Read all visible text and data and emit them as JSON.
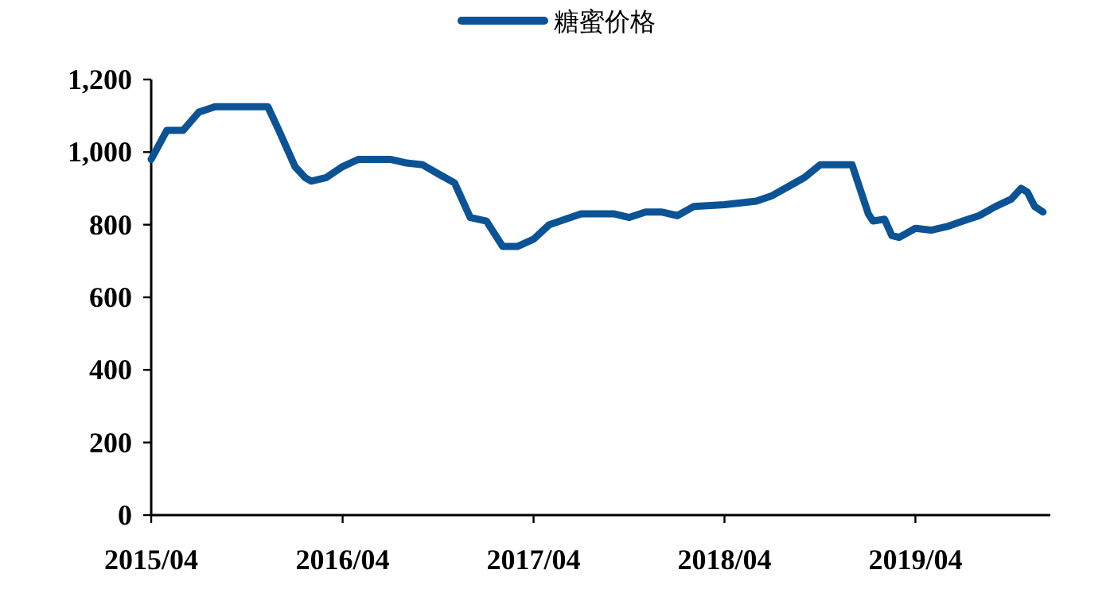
{
  "chart_data": {
    "type": "line",
    "x": [
      "2015-04",
      "2015-05",
      "2015-06",
      "2015-07",
      "2015-08",
      "2015-11-10",
      "2015-12",
      "2016-01",
      "2016-01-20",
      "2016-02",
      "2016-03",
      "2016-04",
      "2016-05",
      "2016-07",
      "2016-08",
      "2016-09",
      "2016-10",
      "2016-11",
      "2016-12",
      "2017-01",
      "2017-02",
      "2017-03",
      "2017-04",
      "2017-05",
      "2017-06",
      "2017-07",
      "2017-09",
      "2017-10",
      "2017-11",
      "2017-12",
      "2018-01",
      "2018-02",
      "2018-04",
      "2018-06",
      "2018-07",
      "2018-08",
      "2018-09",
      "2018-10",
      "2018-11",
      "2018-12",
      "2019-01",
      "2019-01-10",
      "2019-02",
      "2019-02-15",
      "2019-03",
      "2019-04",
      "2019-05",
      "2019-06",
      "2019-07",
      "2019-08",
      "2019-09",
      "2019-10",
      "2019-10-20",
      "2019-11",
      "2019-11-15",
      "2019-12"
    ],
    "series": [
      {
        "name": "糖蜜价格",
        "color": "#0b5394",
        "values": [
          980,
          1060,
          1060,
          1110,
          1125,
          1125,
          1060,
          960,
          930,
          920,
          930,
          960,
          980,
          980,
          970,
          965,
          940,
          915,
          820,
          810,
          740,
          740,
          760,
          800,
          815,
          830,
          830,
          820,
          835,
          835,
          825,
          850,
          855,
          865,
          880,
          905,
          930,
          965,
          965,
          965,
          830,
          810,
          815,
          770,
          765,
          790,
          785,
          795,
          810,
          825,
          850,
          870,
          900,
          890,
          850,
          835
        ]
      }
    ],
    "xlim": [
      "2015-04",
      "2019-12-15"
    ],
    "xticks": [
      {
        "value": "2015-04",
        "label": "2015/04"
      },
      {
        "value": "2016-04",
        "label": "2016/04"
      },
      {
        "value": "2017-04",
        "label": "2017/04"
      },
      {
        "value": "2018-04",
        "label": "2018/04"
      },
      {
        "value": "2019-04",
        "label": "2019/04"
      }
    ],
    "ylim": [
      0,
      1200
    ],
    "yticks": [
      0,
      {
        "value": 200,
        "label": "200"
      },
      {
        "value": 400,
        "label": "400"
      },
      {
        "value": 600,
        "label": "600"
      },
      {
        "value": 800,
        "label": "800"
      },
      {
        "value": 1000,
        "label": "1,000"
      },
      {
        "value": 1200,
        "label": "1,200"
      }
    ],
    "legend": "top",
    "grid": false,
    "marker": "none",
    "line_style": "solid"
  }
}
